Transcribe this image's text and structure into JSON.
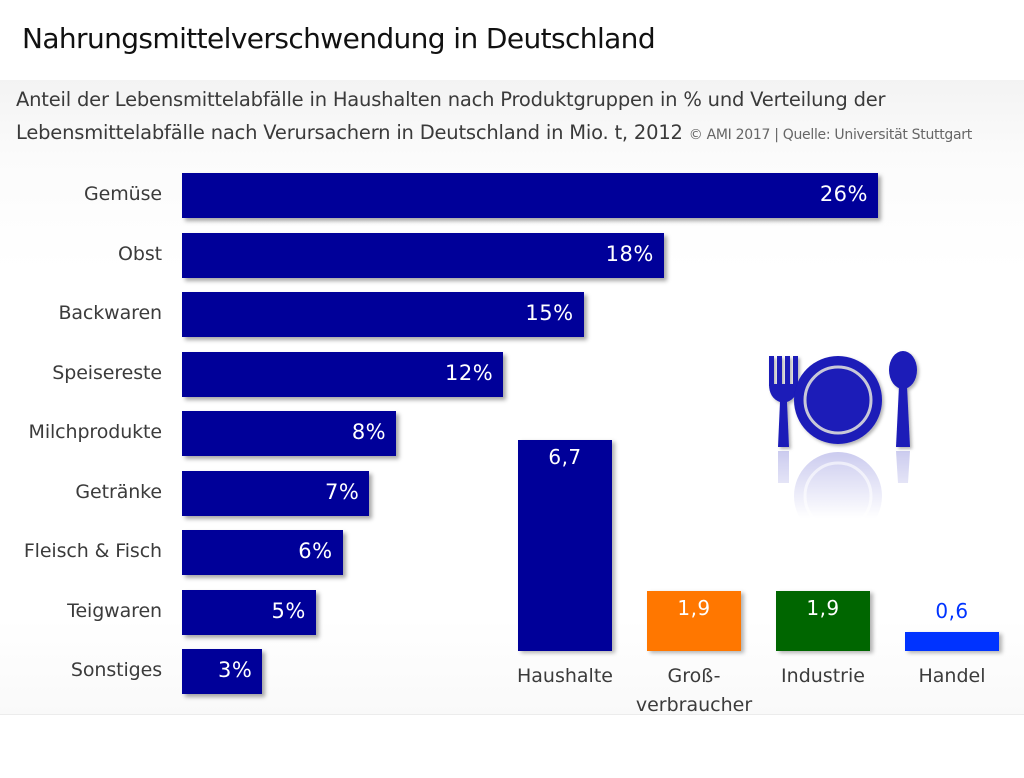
{
  "header": {
    "title": "Nahrungsmittelverschwendung in Deutschland",
    "subtitle_line1": "Anteil der Lebensmittelabfälle in Haushalten nach Produktgruppen in % und Verteilung der",
    "subtitle_line2": "Lebensmittelabfälle nach Verursachern in Deutschland in Mio. t, 2012",
    "source": "© AMI 2017 | Quelle: Universität Stuttgart"
  },
  "icon": "plate-cutlery-icon",
  "colors": {
    "primary": "#000099",
    "orange": "#ff7700",
    "green": "#006600",
    "blue": "#0033ff"
  },
  "chart_data": [
    {
      "type": "bar",
      "orientation": "horizontal",
      "title": "Anteil der Lebensmittelabfälle in Haushalten nach Produktgruppen in %",
      "categories": [
        "Gemüse",
        "Obst",
        "Backwaren",
        "Speisereste",
        "Milchprodukte",
        "Getränke",
        "Fleisch & Fisch",
        "Teigwaren",
        "Sonstiges"
      ],
      "values": [
        26,
        18,
        15,
        12,
        8,
        7,
        6,
        5,
        3
      ],
      "labels": [
        "26%",
        "18%",
        "15%",
        "12%",
        "8%",
        "7%",
        "6%",
        "5%",
        "3%"
      ],
      "unit": "%",
      "xlim": [
        0,
        26
      ],
      "grid": false
    },
    {
      "type": "bar",
      "orientation": "vertical",
      "title": "Verteilung der Lebensmittelabfälle nach Verursachern in Mio. t",
      "categories": [
        "Haushalte",
        "Groß-\nverbraucher",
        "Industrie",
        "Handel"
      ],
      "values": [
        6.7,
        1.9,
        1.9,
        0.6
      ],
      "labels": [
        "6,7",
        "1,9",
        "1,9",
        "0,6"
      ],
      "bar_colors": [
        "#000099",
        "#ff7700",
        "#006600",
        "#0033ff"
      ],
      "label_colors": [
        "#ffffff",
        "#ffffff",
        "#ffffff",
        "#0033ff"
      ],
      "unit": "Mio. t",
      "ylim": [
        0,
        6.7
      ],
      "grid": false
    }
  ]
}
